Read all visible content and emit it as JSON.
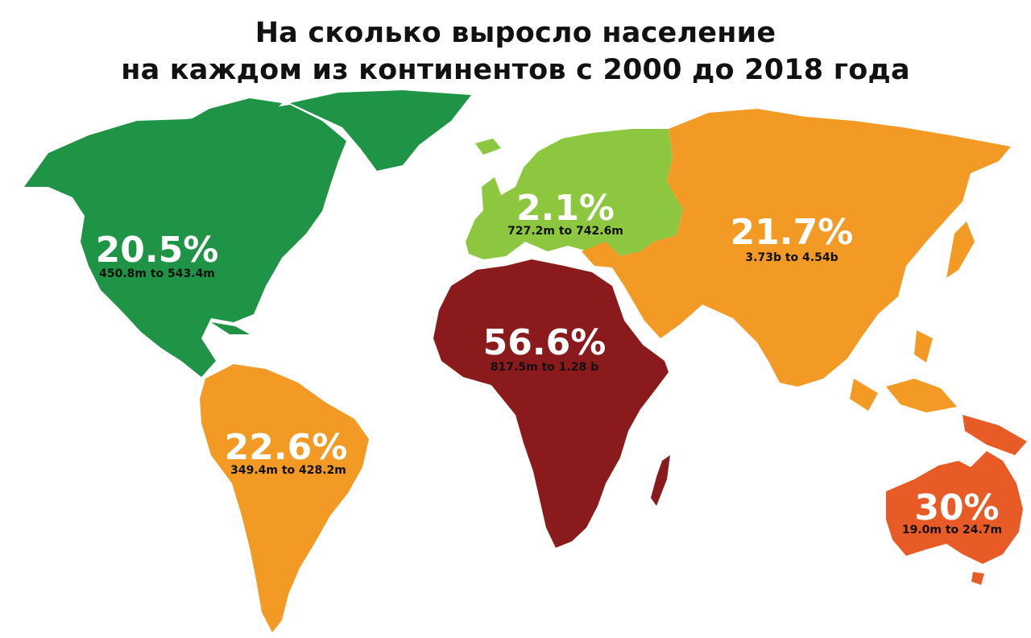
{
  "title": {
    "line1": "На сколько выросло население",
    "line2": "на каждом из континентов с 2000 до 2018 года"
  },
  "colors": {
    "north_america": "#1f9446",
    "europe": "#8dc63f",
    "asia": "#f39a24",
    "africa": "#8b1a1c",
    "south_america": "#f39a24",
    "australia": "#e85b27"
  },
  "continents": {
    "north_america": {
      "percent": "20.5%",
      "range": "450.8m to 543.4m"
    },
    "europe": {
      "percent": "2.1%",
      "range": "727.2m to 742.6m"
    },
    "asia": {
      "percent": "21.7%",
      "range": "3.73b to 4.54b"
    },
    "africa": {
      "percent": "56.6%",
      "range": "817.5m to 1.28 b"
    },
    "south_america": {
      "percent": "22.6%",
      "range": "349.4m to 428.2m"
    },
    "australia": {
      "percent": "30%",
      "range": "19.0m to 24.7m"
    }
  }
}
